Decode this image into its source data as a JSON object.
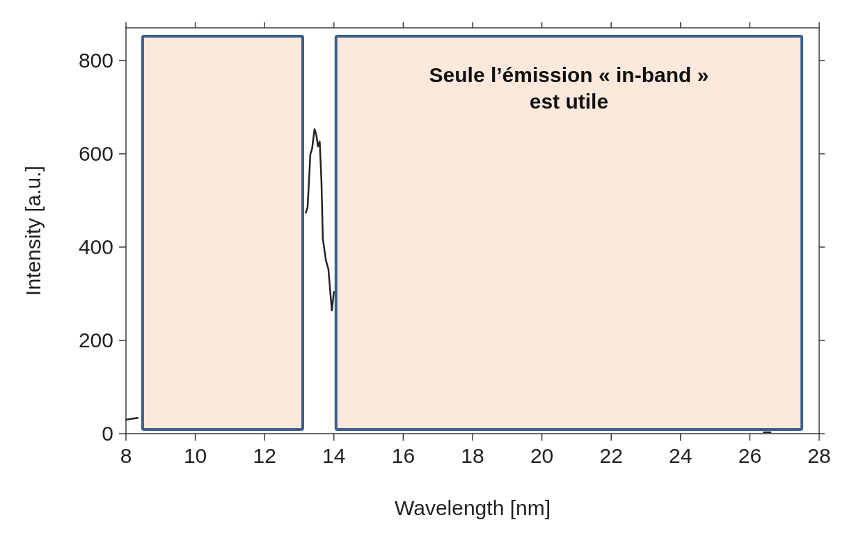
{
  "chart_data": {
    "type": "line",
    "xlabel": "Wavelength [nm]",
    "ylabel": "Intensity [a.u.]",
    "xlim": [
      8,
      28
    ],
    "xticks": [
      8,
      10,
      12,
      14,
      16,
      18,
      20,
      22,
      24,
      26,
      28
    ],
    "ylim": [
      0,
      870
    ],
    "yticks": [
      0,
      200,
      400,
      600,
      800
    ],
    "series": [
      {
        "color": "#222222",
        "x": [
          8.0,
          8.34,
          10.5,
          13.19,
          13.24,
          13.27,
          13.32,
          13.37,
          13.44,
          13.49,
          13.54,
          13.59,
          13.64,
          13.68,
          13.77,
          13.84,
          13.94,
          14.0,
          20,
          26.4,
          26.6
        ],
        "values": [
          30,
          34,
          null,
          474,
          485,
          527,
          599,
          611,
          653,
          641,
          616,
          626,
          541,
          418,
          371,
          353,
          264,
          304,
          null,
          3,
          3
        ]
      }
    ],
    "bands": [
      {
        "axis": "x",
        "from": 8.48,
        "to": 13.1,
        "color": "#fce9dc"
      },
      {
        "axis": "x",
        "from": 14.06,
        "to": 27.5,
        "color": "#fce9dc",
        "label": "Seule l’émission « in-band » est utile"
      }
    ],
    "marker": "none",
    "line_style": "solid"
  }
}
